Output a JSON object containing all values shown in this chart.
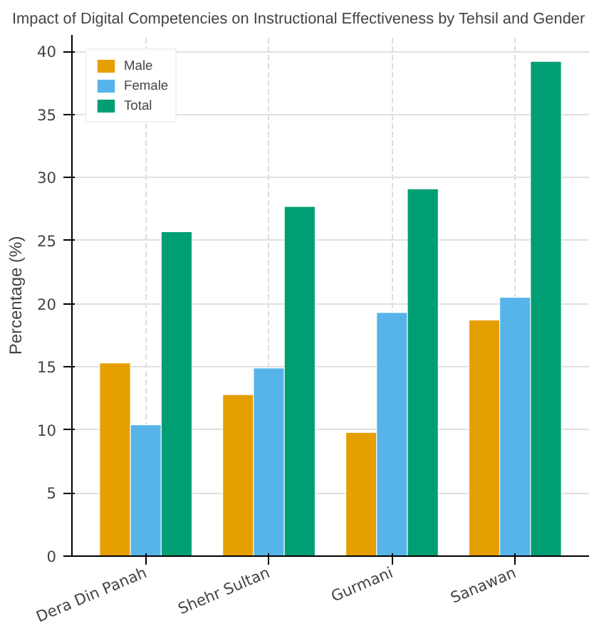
{
  "chart_data": {
    "type": "bar",
    "title": "Impact of Digital Competencies on Instructional Effectiveness by Tehsil and Gender",
    "ylabel": "Percentage (%)",
    "categories": [
      "Dera Din Panah",
      "Shehr Sultan",
      "Gurmani",
      "Sanawan"
    ],
    "series": [
      {
        "name": "Male",
        "color": "#e69f00",
        "values": [
          15.3,
          12.8,
          9.8,
          18.7
        ]
      },
      {
        "name": "Female",
        "color": "#56b4e9",
        "values": [
          10.4,
          14.9,
          19.3,
          20.5
        ]
      },
      {
        "name": "Total",
        "color": "#009e73",
        "values": [
          25.7,
          27.7,
          29.1,
          39.2
        ]
      }
    ],
    "ylim": [
      0,
      41.3
    ],
    "yticks": [
      0,
      5,
      10,
      15,
      20,
      25,
      30,
      35,
      40
    ],
    "grid": true,
    "legend": "top left"
  }
}
